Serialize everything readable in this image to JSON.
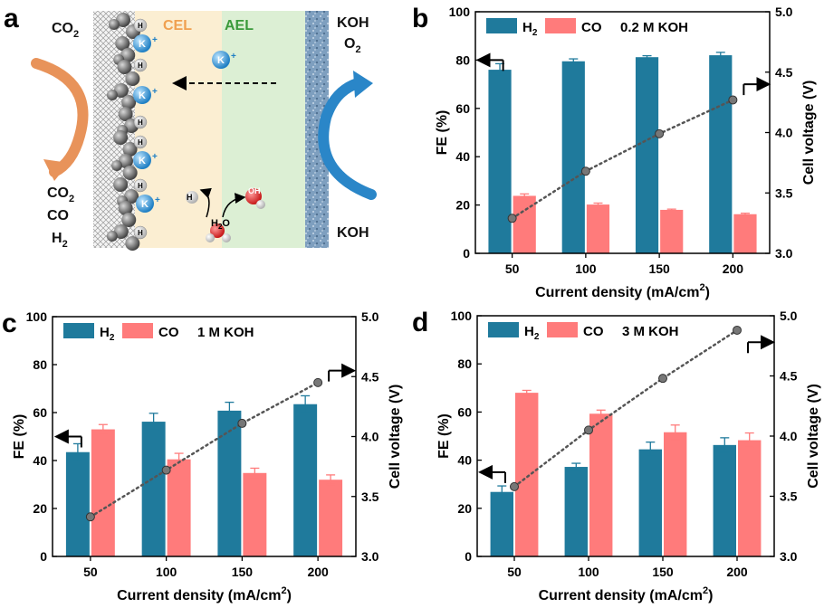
{
  "colors": {
    "h2": "#1f7a9c",
    "co": "#ff7b7b",
    "voltage": "#555555",
    "cel": "#fbeed2",
    "ael": "#dcefd4"
  },
  "schematic": {
    "panel_label": "a",
    "co2_in": "CO",
    "co2_in_sub": "2",
    "products": [
      "CO",
      "CO",
      "H"
    ],
    "products_sub": [
      "2",
      "",
      "2"
    ],
    "cel_label": "CEL",
    "ael_label": "AEL",
    "koh_top": "KOH",
    "o2": "O",
    "o2_sub": "2",
    "koh_bottom": "KOH",
    "k_ion": "K",
    "h_ion": "H",
    "oh_ion": "OH",
    "water": "H",
    "water_sub": "2",
    "water_o": "O"
  },
  "chart_data": [
    {
      "panel_label": "b",
      "type": "bar",
      "legend": [
        "H",
        "CO"
      ],
      "legend_sub": "2",
      "condition": "0.2 M KOH",
      "categories": [
        "50",
        "100",
        "150",
        "200"
      ],
      "series": [
        {
          "name": "H2",
          "values": [
            76,
            79.5,
            81.2,
            82
          ],
          "errors": [
            2.5,
            1,
            0.6,
            1.2
          ]
        },
        {
          "name": "CO",
          "values": [
            23.8,
            20.2,
            18,
            16.2
          ],
          "errors": [
            0.8,
            0.6,
            0.3,
            0.4
          ]
        }
      ],
      "voltage": [
        3.29,
        3.68,
        3.99,
        4.27
      ],
      "xlabel": "Current density (mA/cm",
      "xlabel_sup": "2",
      "xlabel_end": ")",
      "ylabel": "FE (%)",
      "y2label": "Cell voltage (V)",
      "ylim": [
        0,
        100
      ],
      "y2lim": [
        3.0,
        5.0
      ],
      "yticks": [
        "0",
        "20",
        "40",
        "60",
        "80",
        "100"
      ],
      "y2ticks": [
        "3.0",
        "3.5",
        "4.0",
        "4.5",
        "5.0"
      ],
      "left_arrow_at": 80,
      "right_arrow_at": 4.4
    },
    {
      "panel_label": "c",
      "type": "bar",
      "legend": [
        "H",
        "CO"
      ],
      "legend_sub": "2",
      "condition": "1 M KOH",
      "categories": [
        "50",
        "100",
        "150",
        "200"
      ],
      "series": [
        {
          "name": "H2",
          "values": [
            43.5,
            56.2,
            60.8,
            63.5
          ],
          "errors": [
            3.5,
            3.5,
            3.5,
            3.5
          ]
        },
        {
          "name": "CO",
          "values": [
            53,
            40.5,
            34.8,
            32
          ],
          "errors": [
            2,
            2.5,
            2,
            2
          ]
        }
      ],
      "voltage": [
        3.33,
        3.72,
        4.11,
        4.45
      ],
      "xlabel": "Current density (mA/cm",
      "xlabel_sup": "2",
      "xlabel_end": ")",
      "ylabel": "FE (%)",
      "y2label": "Cell voltage (V)",
      "ylim": [
        0,
        100
      ],
      "y2lim": [
        3.0,
        5.0
      ],
      "yticks": [
        "0",
        "20",
        "40",
        "60",
        "80",
        "100"
      ],
      "y2ticks": [
        "3.0",
        "3.5",
        "4.0",
        "4.5",
        "5.0"
      ],
      "left_arrow_at": 50,
      "right_arrow_at": 4.55
    },
    {
      "panel_label": "d",
      "type": "bar",
      "legend": [
        "H",
        "CO"
      ],
      "legend_sub": "2",
      "condition": "3 M KOH",
      "categories": [
        "50",
        "100",
        "150",
        "200"
      ],
      "series": [
        {
          "name": "H2",
          "values": [
            26.8,
            37.2,
            44.5,
            46.3
          ],
          "errors": [
            2.5,
            1.5,
            3,
            3
          ]
        },
        {
          "name": "CO",
          "values": [
            68,
            59.3,
            51.6,
            48.3
          ],
          "errors": [
            1,
            1.5,
            3,
            3
          ]
        }
      ],
      "voltage": [
        3.58,
        4.05,
        4.48,
        4.88
      ],
      "xlabel": "Current density (mA/cm",
      "xlabel_sup": "2",
      "xlabel_end": ")",
      "ylabel": "FE (%)",
      "y2label": "Cell voltage (V)",
      "ylim": [
        0,
        100
      ],
      "y2lim": [
        3.0,
        5.0
      ],
      "yticks": [
        "0",
        "20",
        "40",
        "60",
        "80",
        "100"
      ],
      "y2ticks": [
        "3.0",
        "3.5",
        "4.0",
        "4.5",
        "5.0"
      ],
      "left_arrow_at": 35,
      "right_arrow_at": 4.78
    }
  ]
}
